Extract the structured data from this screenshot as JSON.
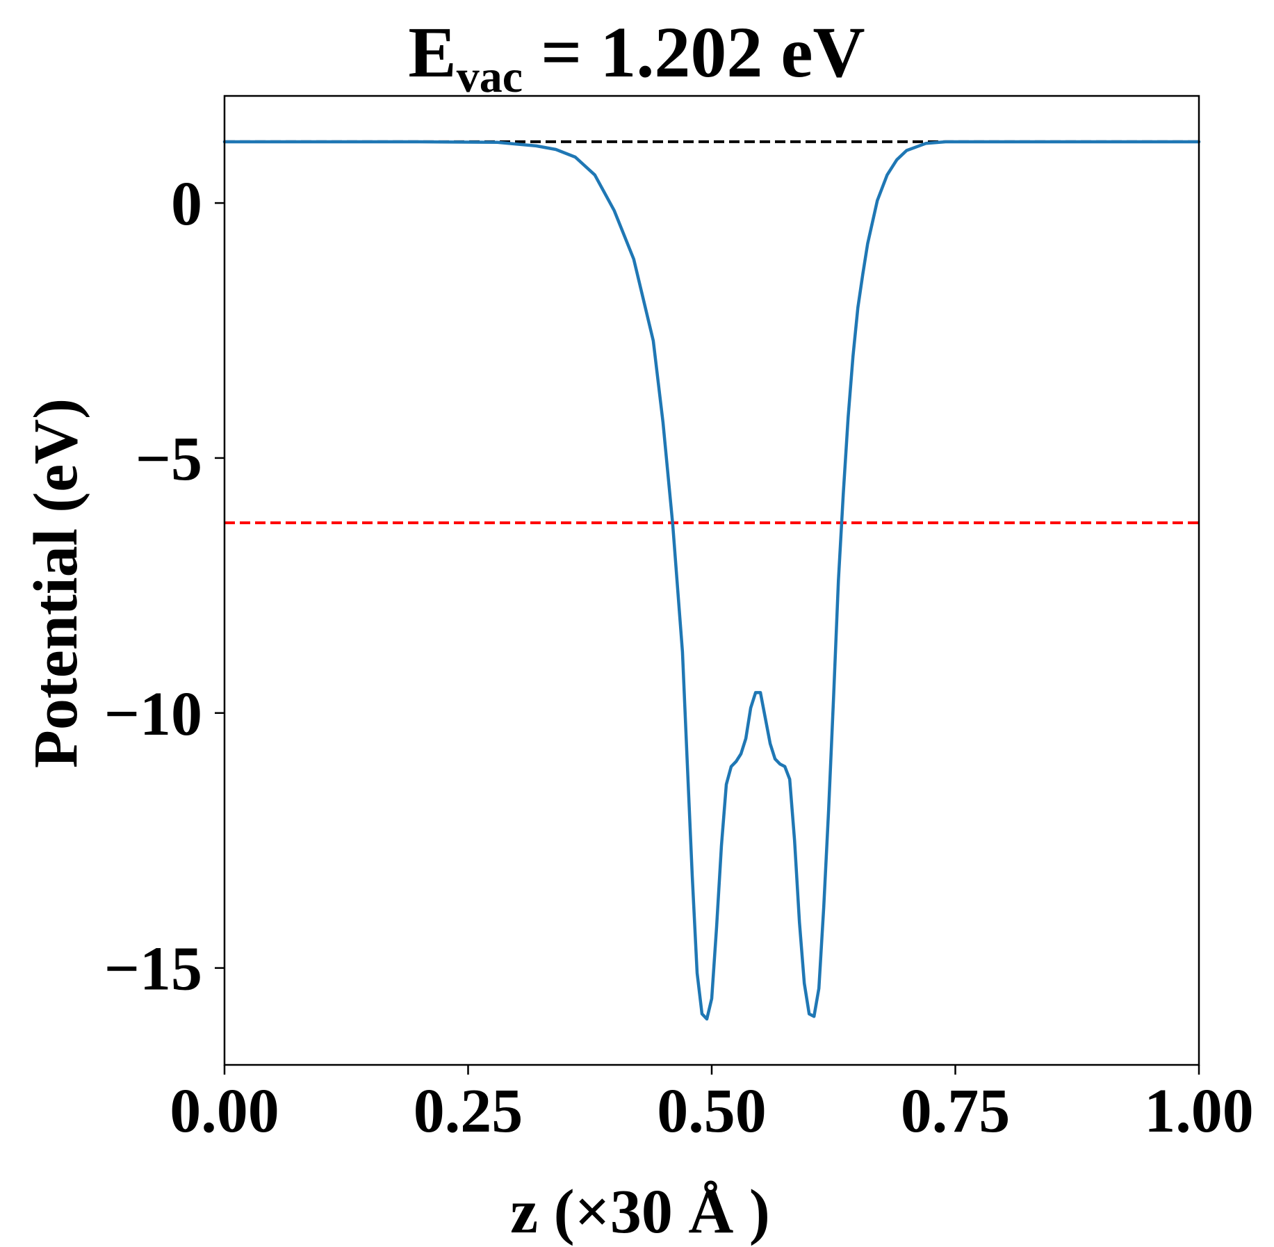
{
  "chart_data": {
    "type": "line",
    "title": {
      "prefix": "E",
      "subscript": "vac",
      "suffix": " = 1.202 eV"
    },
    "xlabel": "z (×30 Å )",
    "ylabel": "Potential (eV)",
    "xlim": [
      0.0,
      1.0
    ],
    "ylim": [
      -16.9,
      2.1
    ],
    "x_ticks": [
      0.0,
      0.25,
      0.5,
      0.75,
      1.0
    ],
    "x_tick_labels": [
      "0.00",
      "0.25",
      "0.50",
      "0.75",
      "1.00"
    ],
    "y_ticks": [
      0,
      -5,
      -10,
      -15
    ],
    "y_tick_labels": [
      "0",
      "−5",
      "−10",
      "−15"
    ],
    "grid": false,
    "series": [
      {
        "color": "#1f77b4",
        "style": "solid",
        "x": [
          0.0,
          0.1,
          0.2,
          0.28,
          0.32,
          0.34,
          0.36,
          0.38,
          0.4,
          0.42,
          0.44,
          0.45,
          0.46,
          0.47,
          0.475,
          0.48,
          0.485,
          0.49,
          0.495,
          0.5,
          0.505,
          0.51,
          0.515,
          0.52,
          0.525,
          0.53,
          0.535,
          0.54,
          0.545,
          0.55,
          0.555,
          0.56,
          0.565,
          0.57,
          0.575,
          0.58,
          0.585,
          0.59,
          0.595,
          0.6,
          0.605,
          0.61,
          0.615,
          0.62,
          0.625,
          0.63,
          0.635,
          0.64,
          0.645,
          0.65,
          0.655,
          0.66,
          0.67,
          0.68,
          0.69,
          0.7,
          0.72,
          0.74,
          0.76,
          0.78,
          0.8,
          0.82,
          0.86,
          0.9,
          1.0
        ],
        "y": [
          1.2,
          1.2,
          1.2,
          1.19,
          1.12,
          1.05,
          0.9,
          0.55,
          -0.15,
          -1.1,
          -2.7,
          -4.3,
          -6.3,
          -8.8,
          -11.0,
          -13.2,
          -15.1,
          -15.9,
          -16.0,
          -15.6,
          -14.2,
          -12.6,
          -11.4,
          -11.05,
          -10.95,
          -10.8,
          -10.5,
          -9.9,
          -9.6,
          -9.6,
          -10.1,
          -10.6,
          -10.9,
          -11.0,
          -11.05,
          -11.3,
          -12.5,
          -14.1,
          -15.3,
          -15.9,
          -15.95,
          -15.4,
          -13.8,
          -11.9,
          -9.7,
          -7.4,
          -5.7,
          -4.2,
          -3.0,
          -2.05,
          -1.4,
          -0.8,
          0.05,
          0.55,
          0.85,
          1.03,
          1.17,
          1.2,
          1.2,
          1.2,
          1.2,
          1.2,
          1.2,
          1.2,
          1.2
        ]
      }
    ],
    "reference_lines": [
      {
        "y": 1.202,
        "color": "#000000",
        "style": "dashed"
      },
      {
        "y": -6.27,
        "color": "#ff0000",
        "style": "dashed"
      }
    ]
  }
}
